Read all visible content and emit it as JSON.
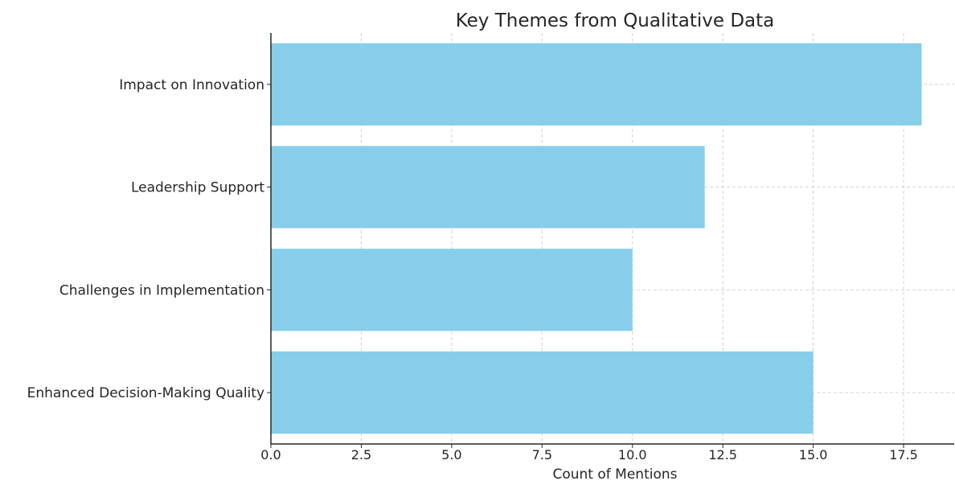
{
  "chart_data": {
    "type": "bar",
    "orientation": "horizontal",
    "title": "Key Themes from Qualitative Data",
    "xlabel": "Count of Mentions",
    "ylabel": "",
    "categories": [
      "Impact on Innovation",
      "Leadership Support",
      "Challenges in Implementation",
      "Enhanced Decision-Making Quality"
    ],
    "values": [
      18,
      12,
      10,
      15
    ],
    "xlim": [
      0,
      18.9
    ],
    "xticks": [
      {
        "value": 0,
        "label": "0.0"
      },
      {
        "value": 2.5,
        "label": "2.5"
      },
      {
        "value": 5,
        "label": "5.0"
      },
      {
        "value": 7.5,
        "label": "7.5"
      },
      {
        "value": 10,
        "label": "10.0"
      },
      {
        "value": 12.5,
        "label": "12.5"
      },
      {
        "value": 15,
        "label": "15.0"
      },
      {
        "value": 17.5,
        "label": "17.5"
      }
    ],
    "grid": true,
    "grid_style": "dashed",
    "colors": {
      "bar": "#87CEEB",
      "grid": "#d3d3d3",
      "axis": "#262626"
    }
  }
}
